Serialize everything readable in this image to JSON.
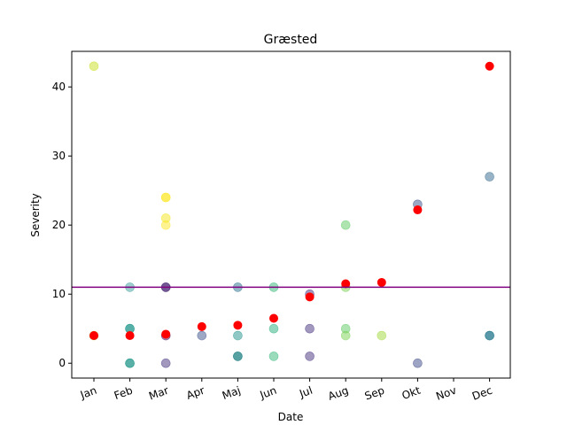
{
  "chart_data": {
    "type": "scatter",
    "title": "Græsted",
    "xlabel": "Date",
    "ylabel": "Severity",
    "categories": [
      "Jan",
      "Feb",
      "Mar",
      "Apr",
      "Maj",
      "Jun",
      "Jul",
      "Aug",
      "Sep",
      "Okt",
      "Nov",
      "Dec"
    ],
    "ylim": [
      -2.15,
      45.15
    ],
    "yticks": [
      0,
      10,
      20,
      30,
      40
    ],
    "grid": false,
    "threshold": {
      "value": 11,
      "color": "#800080"
    },
    "colors": {
      "mean": "#ff0000"
    },
    "points": [
      {
        "x": "Jan",
        "y": 43,
        "color": "#c8e020"
      },
      {
        "x": "Jan",
        "y": 4,
        "color": "#a0da39"
      },
      {
        "x": "Feb",
        "y": 11,
        "color": "#3f9f9f"
      },
      {
        "x": "Feb",
        "y": 5,
        "color": "#1f968b"
      },
      {
        "x": "Feb",
        "y": 5,
        "color": "#1f968b"
      },
      {
        "x": "Feb",
        "y": 0,
        "color": "#1fa088"
      },
      {
        "x": "Feb",
        "y": 0,
        "color": "#21918c"
      },
      {
        "x": "Mar",
        "y": 24,
        "color": "#fde725"
      },
      {
        "x": "Mar",
        "y": 24,
        "color": "#fde725"
      },
      {
        "x": "Mar",
        "y": 21,
        "color": "#f4e61e"
      },
      {
        "x": "Mar",
        "y": 20,
        "color": "#fde725"
      },
      {
        "x": "Mar",
        "y": 11,
        "color": "#440154"
      },
      {
        "x": "Mar",
        "y": 11,
        "color": "#46327e"
      },
      {
        "x": "Mar",
        "y": 4,
        "color": "#440154"
      },
      {
        "x": "Mar",
        "y": 0,
        "color": "#46327e"
      },
      {
        "x": "Apr",
        "y": 4,
        "color": "#3b528b"
      },
      {
        "x": "Maj",
        "y": 11,
        "color": "#2c728e"
      },
      {
        "x": "Maj",
        "y": 4,
        "color": "#21918c"
      },
      {
        "x": "Maj",
        "y": 1,
        "color": "#21918c"
      },
      {
        "x": "Maj",
        "y": 1,
        "color": "#1f7a7f"
      },
      {
        "x": "Jun",
        "y": 11,
        "color": "#35b779"
      },
      {
        "x": "Jun",
        "y": 5,
        "color": "#29af7f"
      },
      {
        "x": "Jun",
        "y": 1,
        "color": "#35b779"
      },
      {
        "x": "Jul",
        "y": 10,
        "color": "#46327e"
      },
      {
        "x": "Jul",
        "y": 5,
        "color": "#46327e"
      },
      {
        "x": "Jul",
        "y": 1,
        "color": "#46327e"
      },
      {
        "x": "Aug",
        "y": 20,
        "color": "#5ec962"
      },
      {
        "x": "Aug",
        "y": 11,
        "color": "#7ad151"
      },
      {
        "x": "Aug",
        "y": 5,
        "color": "#5ec962"
      },
      {
        "x": "Aug",
        "y": 4,
        "color": "#7ad151"
      },
      {
        "x": "Sep",
        "y": 4,
        "color": "#a0da39"
      },
      {
        "x": "Okt",
        "y": 23,
        "color": "#3b528b"
      },
      {
        "x": "Okt",
        "y": 0,
        "color": "#3e4a89"
      },
      {
        "x": "Dec",
        "y": 27,
        "color": "#31688e"
      },
      {
        "x": "Dec",
        "y": 4,
        "color": "#26828e"
      },
      {
        "x": "Dec",
        "y": 4,
        "color": "#1f6f8b"
      }
    ],
    "means": [
      {
        "x": "Jan",
        "y": 4.0
      },
      {
        "x": "Feb",
        "y": 4.0
      },
      {
        "x": "Mar",
        "y": 4.2
      },
      {
        "x": "Apr",
        "y": 5.3
      },
      {
        "x": "Maj",
        "y": 5.5
      },
      {
        "x": "Jun",
        "y": 6.5
      },
      {
        "x": "Jul",
        "y": 9.6
      },
      {
        "x": "Aug",
        "y": 11.5
      },
      {
        "x": "Sep",
        "y": 11.7
      },
      {
        "x": "Okt",
        "y": 22.2
      },
      {
        "x": "Dec",
        "y": 43.0
      }
    ]
  }
}
